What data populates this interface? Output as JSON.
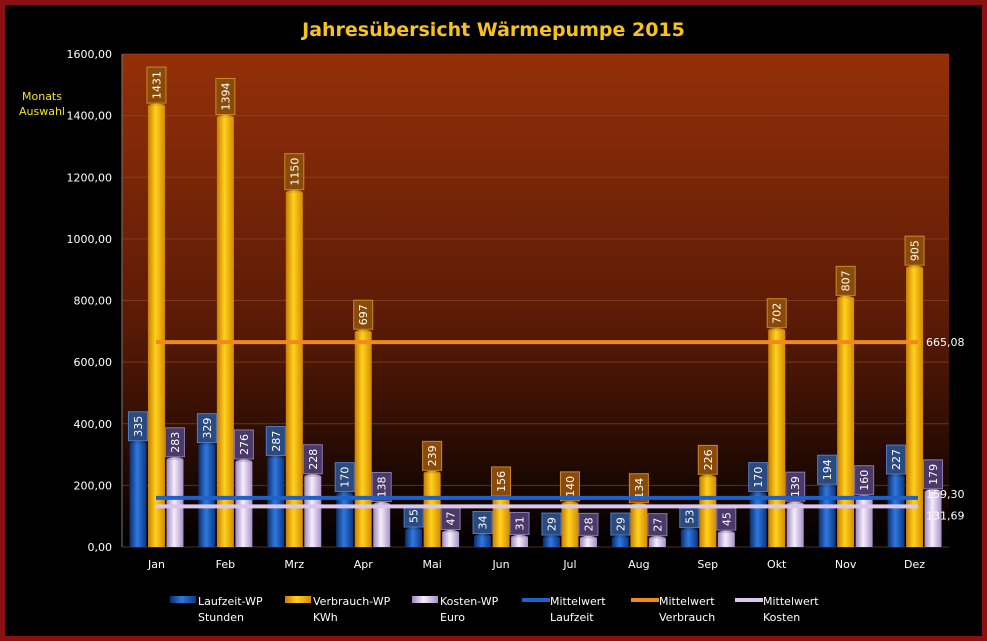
{
  "chart_data": {
    "type": "bar",
    "title": "Jahresübersicht Wärmepumpe  2015",
    "categories": [
      "Jan",
      "Feb",
      "Mrz",
      "Apr",
      "Mai",
      "Jun",
      "Jul",
      "Aug",
      "Sep",
      "Okt",
      "Nov",
      "Dez"
    ],
    "ylim": [
      0,
      1600
    ],
    "yticks": [
      "0,00",
      "200,00",
      "400,00",
      "600,00",
      "800,00",
      "1000,00",
      "1200,00",
      "1400,00",
      "1600,00"
    ],
    "grid": true,
    "legend_placement": "bottom",
    "series": [
      {
        "name": "Laufzeit-WP",
        "unit": "Stunden",
        "color": "#1f5fc8",
        "values": [
          335,
          329,
          287,
          170,
          55,
          34,
          29,
          29,
          53,
          170,
          194,
          227
        ]
      },
      {
        "name": "Verbrauch-WP",
        "unit": "KWh",
        "color": "#f5b800",
        "values": [
          1431,
          1394,
          1150,
          697,
          239,
          156,
          140,
          134,
          226,
          702,
          807,
          905
        ]
      },
      {
        "name": "Kosten-WP",
        "unit": "Euro",
        "color": "#e6d6f2",
        "values": [
          283,
          276,
          228,
          138,
          47,
          31,
          28,
          27,
          45,
          139,
          160,
          179
        ]
      }
    ],
    "lines": [
      {
        "name": "Mittelwert",
        "unit": "Laufzeit",
        "color": "#1c62c8",
        "value": 159.3,
        "label": "159,30"
      },
      {
        "name": "Mittelwert",
        "unit": "Verbrauch",
        "color": "#f08a1c",
        "value": 665.08,
        "label": "665,08"
      },
      {
        "name": "Mittelwert",
        "unit": "Kosten",
        "color": "#d8c8f0",
        "value": 131.69,
        "label": "131,69"
      }
    ]
  },
  "side_label": {
    "line1": "Monats",
    "line2": "Auswahl"
  }
}
